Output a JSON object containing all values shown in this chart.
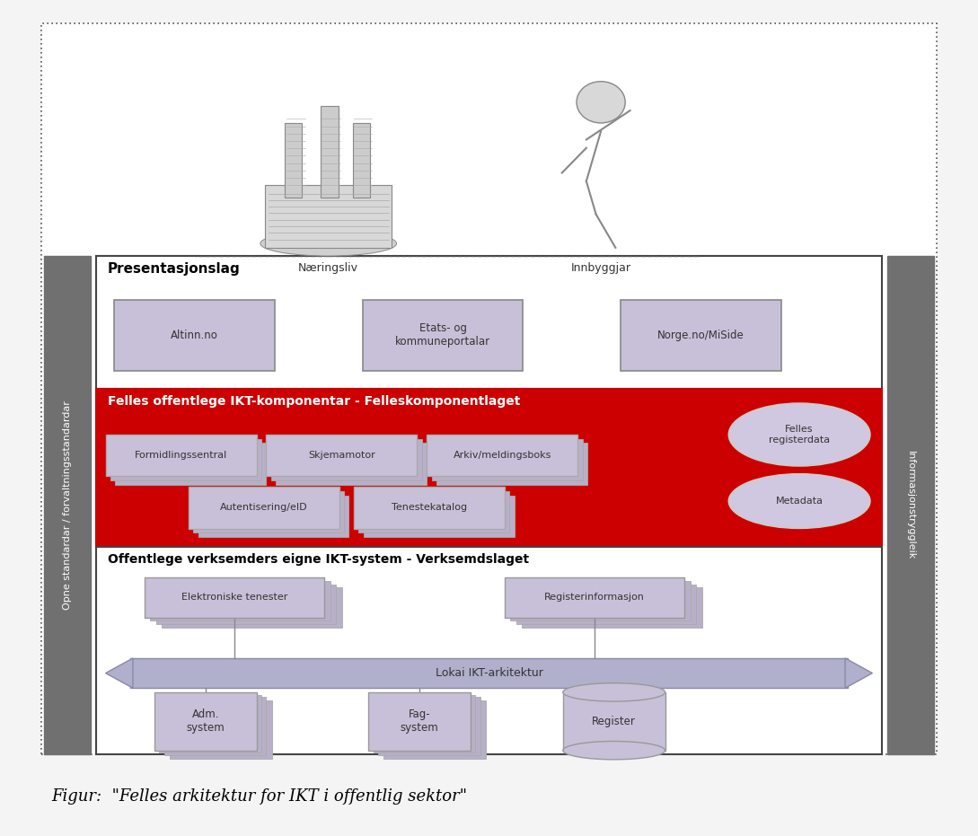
{
  "fig_width": 10.89,
  "fig_height": 9.31,
  "dpi": 100,
  "bg_color": "#f0f0f0",
  "caption": "Figur:  \"Felles arkitektur for IKT i offentlig sektor\"",
  "caption_fontsize": 13,
  "left_sidebar_text": "Opne standardar / forvaltningsstandardar",
  "right_sidebar_text": "Informasjonstryggleik",
  "sidebar_color": "#707070",
  "sidebar_text_color": "#ffffff",
  "sidebar_fontsize": 8,
  "outer_dotted_color": "#555555",
  "presentation_layer": {
    "label": "Presentasjonslag",
    "label_fontsize": 11,
    "bg": "#ffffff",
    "border": "#444444",
    "boxes": [
      "Altinn.no",
      "Etats- og\nkommuneportalar",
      "Norge.no/MiSide"
    ],
    "box_color": "#c8c0d8",
    "box_border": "#888888"
  },
  "felles_layer": {
    "label": "Felles offentlege IKT-komponentar - Felleskomponentlaget",
    "label_fontsize": 10,
    "bg": "#cc0000",
    "label_color": "#ffffff",
    "boxes_row1": [
      "Formidlingssentral",
      "Skjemamotor",
      "Arkiv/meldingsboks"
    ],
    "boxes_row2": [
      "Autentisering/eID",
      "Tenestekatalog"
    ],
    "box_color": "#c8c0d8",
    "box_border": "#aaaaaa",
    "ellipses": [
      "Felles\nregisterdata",
      "Metadata"
    ],
    "ellipse_color": "#d0c8e0",
    "ellipse_border": "#cccccc"
  },
  "verksemd_layer": {
    "label": "Offentlege verksemders eigne IKT-system - Verksemdslaget",
    "label_fontsize": 10,
    "bg": "#ffffff",
    "border": "#444444",
    "box_color": "#c8c0d8",
    "box_border": "#999999",
    "arrow_label": "Lokai IKT-arkitektur",
    "arrow_color": "#b0b0cc",
    "arrow_edge_color": "#8888aa"
  }
}
